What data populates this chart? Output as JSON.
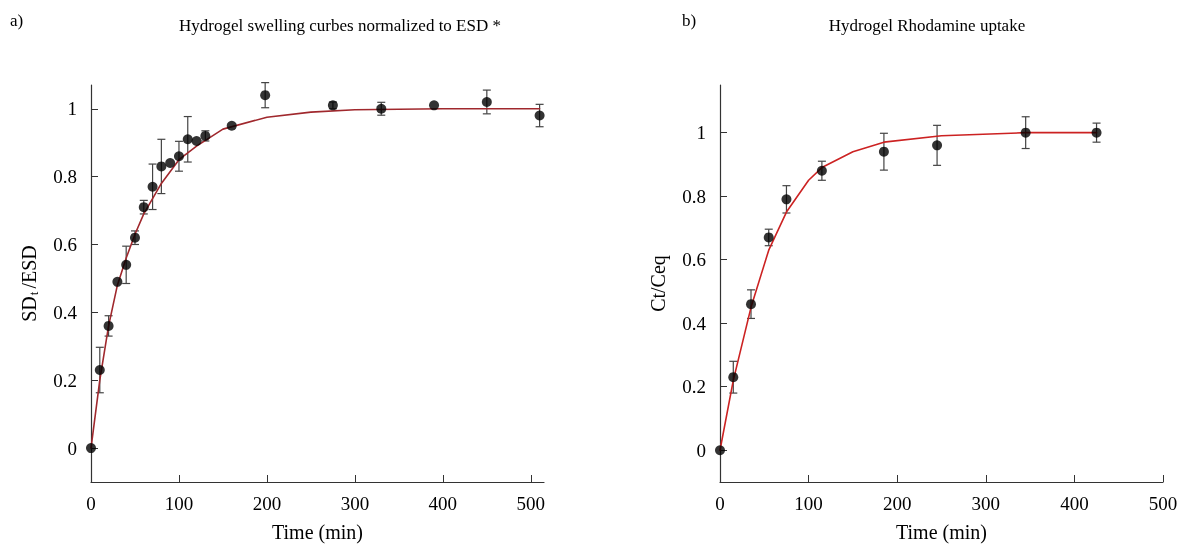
{
  "chart_data": [
    {
      "type": "scatter",
      "title": "Hydrogel swelling curbes normalized to ESD *",
      "annotations": [
        "a)"
      ],
      "xlabel": "Time (min)",
      "ylabel": "SD$_{t}$/ESD",
      "xlim": [
        0,
        515
      ],
      "xticks": [
        0,
        100,
        200,
        300,
        400,
        500
      ],
      "ylim": [
        -0.1,
        1.07
      ],
      "yticks": [
        0,
        0.2,
        0.4,
        0.6,
        0.8,
        1
      ],
      "grid": false,
      "series": [
        {
          "color": "#000000",
          "marker": "circle",
          "x": [
            0,
            10,
            20,
            30,
            40,
            50,
            60,
            70,
            80,
            90,
            100,
            110,
            120,
            130,
            160,
            198,
            275,
            330,
            390,
            450,
            510
          ],
          "values": [
            0,
            0.23,
            0.36,
            0.49,
            0.54,
            0.62,
            0.71,
            0.77,
            0.83,
            0.84,
            0.86,
            0.91,
            0.905,
            0.92,
            0.95,
            1.04,
            1.01,
            1.0,
            1.01,
            1.02,
            0.98
          ],
          "errors": [
            null,
            0.067,
            0.03,
            null,
            0.055,
            0.02,
            0.02,
            0.067,
            0.08,
            null,
            0.044,
            0.067,
            null,
            0.015,
            null,
            0.037,
            0.01,
            0.019,
            null,
            0.035,
            0.033
          ]
        },
        {
          "type": "line",
          "color": "#a0282d",
          "marker": "none",
          "line_style": "solid",
          "x": [
            0,
            10,
            20,
            30,
            40,
            50,
            60,
            80,
            100,
            120,
            150,
            200,
            250,
            300,
            400,
            510
          ],
          "values": [
            0,
            0.2,
            0.36,
            0.48,
            0.56,
            0.63,
            0.69,
            0.78,
            0.85,
            0.89,
            0.94,
            0.975,
            0.99,
            0.997,
            1.0,
            1.0
          ]
        }
      ]
    },
    {
      "type": "scatter",
      "title": "Hydrogel Rhodamine uptake",
      "annotations": [
        "b)"
      ],
      "xlabel": "Time (min)",
      "ylabel": "Ct/Ceq",
      "xlim": [
        0,
        500
      ],
      "xticks": [
        0,
        100,
        200,
        300,
        400,
        500
      ],
      "ylim": [
        -0.1,
        1.15
      ],
      "yticks": [
        0,
        0.2,
        0.4,
        0.6,
        0.8,
        1
      ],
      "grid": false,
      "series": [
        {
          "color": "#000000",
          "marker": "circle",
          "x": [
            0,
            15,
            35,
            55,
            75,
            115,
            185,
            245,
            345,
            425
          ],
          "values": [
            0,
            0.23,
            0.46,
            0.67,
            0.79,
            0.88,
            0.94,
            0.96,
            1.0,
            1.0
          ],
          "errors": [
            null,
            0.05,
            0.045,
            0.026,
            0.043,
            0.03,
            0.058,
            0.063,
            0.05,
            0.03
          ]
        },
        {
          "type": "line",
          "color": "#cc2222",
          "marker": "none",
          "line_style": "solid",
          "x": [
            0,
            15,
            35,
            55,
            75,
            100,
            115,
            150,
            185,
            250,
            345,
            425
          ],
          "values": [
            0,
            0.22,
            0.45,
            0.63,
            0.75,
            0.85,
            0.89,
            0.94,
            0.97,
            0.99,
            1.0,
            1.0
          ]
        }
      ]
    }
  ]
}
